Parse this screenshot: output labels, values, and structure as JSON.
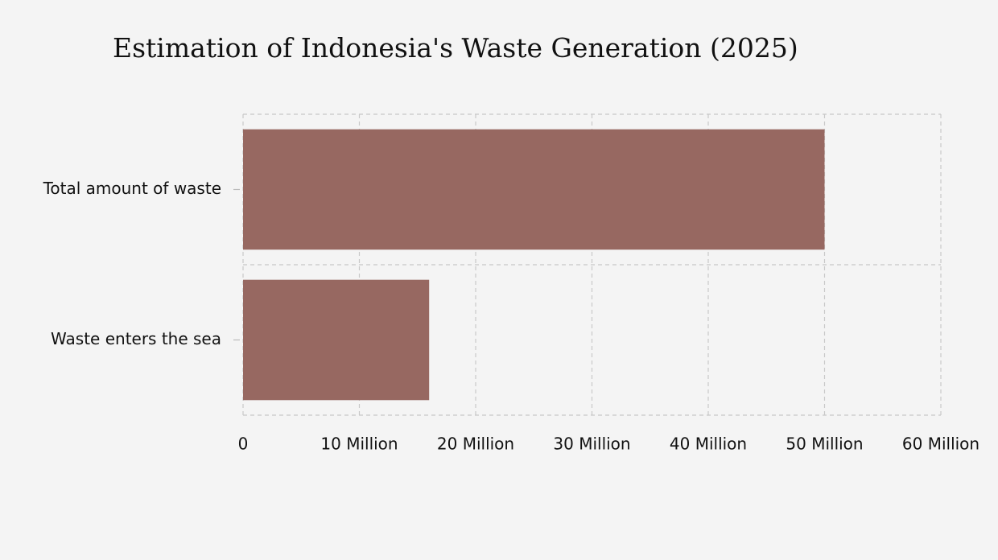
{
  "chart_data": {
    "type": "bar",
    "orientation": "horizontal",
    "title": "Estimation of Indonesia's Waste Generation (2025)",
    "categories": [
      "Total amount of waste",
      "Waste enters the sea"
    ],
    "values": [
      50000000,
      16000000
    ],
    "color": "#976861",
    "xlim": [
      0,
      60000000
    ],
    "xticks": [
      0,
      {
        "value": 10000000,
        "label": "10 Million"
      },
      {
        "value": 20000000,
        "label": "20 Million"
      },
      {
        "value": 30000000,
        "label": "30 Million"
      },
      {
        "value": 40000000,
        "label": "40 Million"
      },
      {
        "value": 50000000,
        "label": "50 Million"
      },
      {
        "value": 60000000,
        "label": "60 Million"
      }
    ],
    "grid": true
  }
}
